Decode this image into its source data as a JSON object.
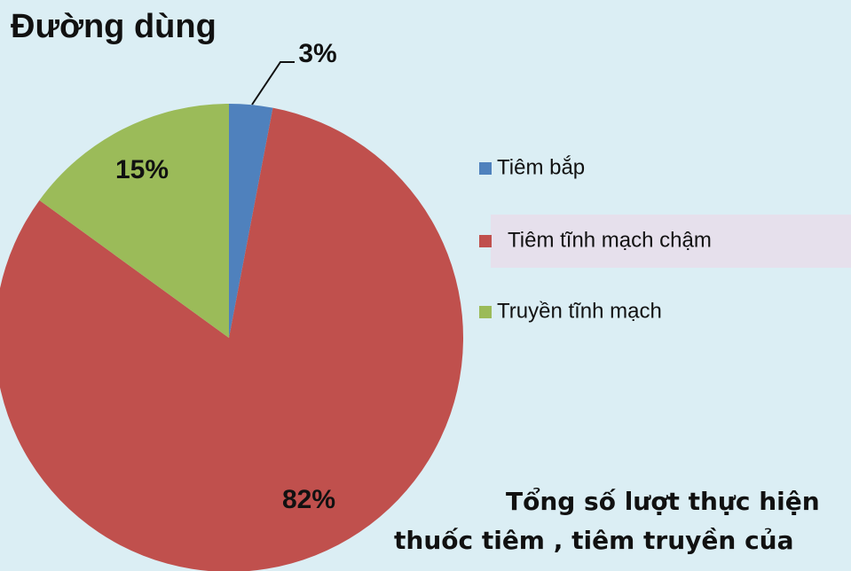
{
  "chart_data": {
    "type": "pie",
    "title": "Đường dùng",
    "categories": [
      "Tiêm bắp",
      "Tiêm tĩnh mạch chậm",
      "Truyền tĩnh mạch"
    ],
    "values": [
      3,
      82,
      15
    ],
    "value_labels": [
      "3%",
      "82%",
      "15%"
    ],
    "colors": [
      "#4f81bd",
      "#c0504d",
      "#9bbb59"
    ],
    "legend": "right",
    "annotations": [
      "Tổng số lượt thực hiện",
      "thuốc tiêm , tiêm truyền của"
    ]
  }
}
